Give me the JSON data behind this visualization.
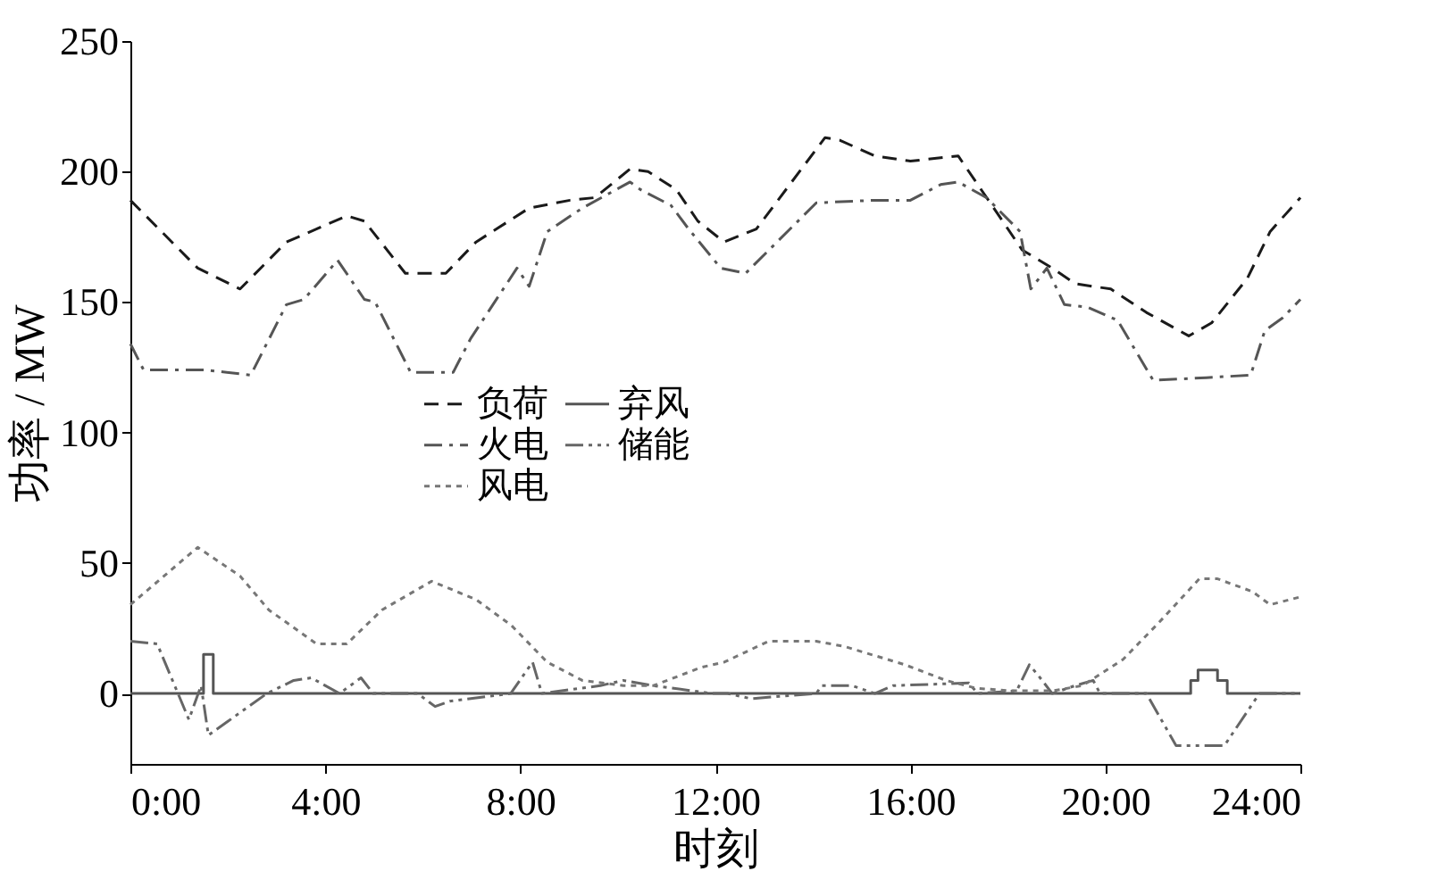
{
  "chart_data": {
    "type": "line",
    "xlabel": "时刻",
    "ylabel": "功率 / MW",
    "xlim": [
      0,
      24
    ],
    "xticks": [
      {
        "value": 0,
        "label": "0:00"
      },
      {
        "value": 4,
        "label": "4:00"
      },
      {
        "value": 8,
        "label": "8:00"
      },
      {
        "value": 12,
        "label": "12:00"
      },
      {
        "value": 16,
        "label": "16:00"
      },
      {
        "value": 20,
        "label": "20:00"
      },
      {
        "value": 24,
        "label": "24:00"
      }
    ],
    "ylim": [
      -27,
      250
    ],
    "yticks": [
      0,
      50,
      100,
      150,
      200,
      250
    ],
    "grid": false,
    "legend": "center",
    "marker": "none",
    "series": [
      {
        "name": "负荷",
        "color": "#1a1a1a",
        "line_style": "dashed",
        "x": [
          0,
          1.38,
          2.25,
          3.2,
          4.44,
          4.8,
          5.64,
          6.47,
          7.09,
          8.18,
          9.02,
          9.53,
          10.25,
          10.62,
          11.2,
          11.64,
          12.18,
          12.84,
          14.25,
          14.55,
          15.27,
          16,
          16.98,
          17.71,
          18.29,
          18.91,
          19.38,
          20.11,
          20.84,
          21.71,
          22.18,
          22.91,
          23.38,
          24
        ],
        "values": [
          189,
          163,
          155,
          173,
          183,
          181,
          161,
          161,
          173,
          186,
          189,
          190,
          201,
          200,
          193,
          181,
          173,
          178,
          213,
          212,
          206,
          204,
          206,
          186,
          170,
          163,
          157,
          155,
          146,
          137,
          142,
          159,
          177,
          190
        ]
      },
      {
        "name": "弃风",
        "color": "#555555",
        "line_style": "solid",
        "x": [
          0,
          1.5,
          1.5,
          1.7,
          1.7,
          21.75,
          21.75,
          21.9,
          21.9,
          22.3,
          22.3,
          22.5,
          22.5,
          24
        ],
        "values": [
          0,
          0,
          15,
          15,
          0,
          0,
          5,
          5,
          9,
          9,
          5,
          5,
          0,
          0
        ]
      },
      {
        "name": "火电",
        "color": "#555555",
        "line_style": "dashdot",
        "x": [
          0,
          0.27,
          1.53,
          2.47,
          3.2,
          3.56,
          4.25,
          4.8,
          5.02,
          5.75,
          6.62,
          6.98,
          7.93,
          8.18,
          8.55,
          9.27,
          10.25,
          10.47,
          11.09,
          11.45,
          12.11,
          12.62,
          14.07,
          15.27,
          16,
          16.62,
          16.98,
          17.56,
          18.25,
          18.47,
          18.8,
          19.16,
          19.64,
          20.25,
          20.98,
          22.07,
          22.98,
          23.27,
          23.64,
          24
        ],
        "values": [
          134,
          124,
          124,
          122,
          149,
          151,
          166,
          151,
          150,
          123,
          123,
          136,
          163,
          156,
          177,
          186,
          196,
          193,
          187,
          178,
          163,
          161,
          188,
          189,
          189,
          195,
          196,
          190,
          177,
          155,
          163,
          149,
          148,
          143,
          120,
          121,
          122,
          139,
          144,
          151
        ]
      },
      {
        "name": "储能",
        "color": "#666666",
        "line_style": "dashdotdot",
        "x": [
          0,
          0.55,
          1.2,
          1.45,
          1.6,
          2.8,
          3.35,
          3.71,
          4.29,
          4.73,
          4.98,
          5.89,
          6.25,
          6.55,
          7.8,
          8.25,
          8.44,
          9.64,
          10.11,
          10.73,
          11.93,
          12.25,
          12.73,
          14.07,
          14.18,
          14.8,
          15.27,
          15.64,
          17.2,
          17.38,
          18.18,
          18.44,
          18.62,
          18.91,
          19.38,
          19.75,
          19.89,
          20.84,
          21.45,
          22.44,
          23.16,
          24
        ],
        "values": [
          20,
          19,
          -10,
          3,
          -16,
          0,
          5,
          6,
          0,
          6,
          0,
          0,
          -5,
          -3,
          0,
          12,
          0,
          3,
          5,
          3,
          0,
          0,
          -2,
          0,
          3,
          3,
          0,
          3,
          4,
          0,
          1,
          11,
          7,
          0,
          3,
          5,
          0,
          0,
          -20,
          -20,
          0,
          0
        ]
      },
      {
        "name": "风电",
        "color": "#777777",
        "line_style": "dotted",
        "x": [
          0,
          1.38,
          2.25,
          2.84,
          3.82,
          4.44,
          5.16,
          6.18,
          7.09,
          7.82,
          8.55,
          9.27,
          10.11,
          10.73,
          11.71,
          12.18,
          13.09,
          14.07,
          14.65,
          15.89,
          16.73,
          17.35,
          18.07,
          18.91,
          19.53,
          20.36,
          21.09,
          21.93,
          22.29,
          23.02,
          23.38,
          24
        ],
        "values": [
          34,
          56,
          45,
          32,
          19,
          19,
          32,
          43,
          36,
          26,
          12,
          5,
          3,
          3,
          10,
          12,
          20,
          20,
          18,
          11,
          5,
          2,
          1,
          1,
          3,
          13,
          27,
          44,
          44,
          39,
          34,
          37
        ]
      }
    ]
  }
}
